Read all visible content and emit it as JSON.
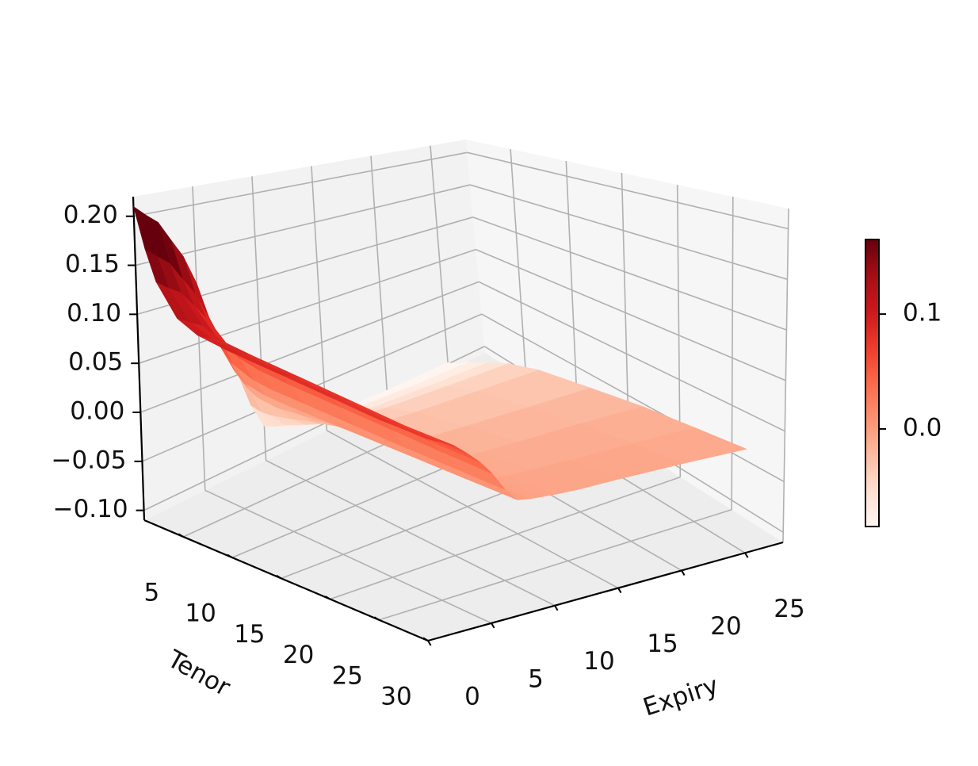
{
  "chart_data": {
    "type": "surface3d",
    "xlabel": "Tenor",
    "ylabel": "Expiry",
    "zlabel": "",
    "title": "",
    "colormap": "Reds",
    "grid": true,
    "xlim": [
      1,
      30
    ],
    "ylim": [
      0,
      28
    ],
    "zlim": [
      -0.11,
      0.22
    ],
    "x_ticks": [
      5,
      10,
      15,
      20,
      25,
      30
    ],
    "y_ticks": [
      0,
      5,
      10,
      15,
      20,
      25
    ],
    "z_ticks": [
      -0.1,
      -0.05,
      0.0,
      0.05,
      0.1,
      0.15,
      0.2
    ],
    "z_tick_labels": [
      "−0.10",
      "−0.05",
      "0.00",
      "0.05",
      "0.10",
      "0.15",
      "0.20"
    ],
    "tenor": [
      1,
      2,
      3,
      5,
      7,
      10,
      15,
      20,
      25,
      30
    ],
    "expiry": [
      0,
      1,
      2,
      3,
      4,
      5,
      6,
      7,
      8,
      9,
      10,
      12,
      15,
      20,
      25
    ],
    "surface_z": [
      [
        0.21,
        0.199,
        0.189,
        0.168,
        0.147,
        0.115,
        0.07,
        0.034,
        0.004,
        -0.04,
        -0.07,
        -0.085,
        -0.092,
        -0.096,
        -0.098
      ],
      [
        0.17,
        0.16,
        0.15,
        0.131,
        0.112,
        0.084,
        0.044,
        0.014,
        -0.01,
        -0.042,
        -0.065,
        -0.078,
        -0.085,
        -0.089,
        -0.091
      ],
      [
        0.14,
        0.131,
        0.123,
        0.107,
        0.09,
        0.066,
        0.032,
        0.005,
        -0.016,
        -0.041,
        -0.058,
        -0.068,
        -0.074,
        -0.078,
        -0.08
      ],
      [
        0.11,
        0.103,
        0.096,
        0.083,
        0.069,
        0.05,
        0.023,
        0.001,
        -0.018,
        -0.035,
        -0.047,
        -0.054,
        -0.059,
        -0.062,
        -0.064
      ],
      [
        0.1,
        0.094,
        0.087,
        0.075,
        0.062,
        0.045,
        0.02,
        0.0,
        -0.015,
        -0.028,
        -0.036,
        -0.041,
        -0.045,
        -0.048,
        -0.05
      ],
      [
        0.095,
        0.089,
        0.083,
        0.071,
        0.059,
        0.042,
        0.019,
        0.0,
        -0.011,
        -0.02,
        -0.026,
        -0.03,
        -0.033,
        -0.035,
        -0.037
      ],
      [
        0.09,
        0.084,
        0.078,
        0.067,
        0.055,
        0.039,
        0.017,
        0.0,
        -0.008,
        -0.014,
        -0.018,
        -0.02,
        -0.022,
        -0.024,
        -0.026
      ],
      [
        0.085,
        0.079,
        0.073,
        0.062,
        0.051,
        0.036,
        0.015,
        0.0,
        -0.006,
        -0.01,
        -0.012,
        -0.013,
        -0.014,
        -0.015,
        -0.017
      ],
      [
        0.08,
        0.074,
        0.068,
        0.058,
        0.047,
        0.033,
        0.014,
        0.0,
        -0.004,
        -0.006,
        -0.007,
        -0.008,
        -0.009,
        -0.01,
        -0.012
      ],
      [
        0.078,
        0.072,
        0.066,
        0.056,
        0.045,
        0.031,
        0.013,
        0.0,
        -0.002,
        -0.003,
        -0.004,
        -0.005,
        -0.005,
        -0.006,
        -0.008
      ]
    ],
    "colorbar": {
      "range": [
        -0.085,
        0.165
      ],
      "ticks": [
        0.0,
        0.1
      ],
      "tick_labels": [
        "0.0",
        "0.1"
      ]
    }
  },
  "colors": {
    "pane_left": "#f2f2f2",
    "pane_right": "#f6f6f6",
    "pane_floor": "#ededed",
    "grid": "#b0b0b0",
    "reds_stops": [
      "#fff5f0",
      "#fee0d2",
      "#fcbba1",
      "#fc9272",
      "#fb6a4a",
      "#ef3b2c",
      "#cb181d",
      "#a50f15",
      "#67000d"
    ]
  }
}
